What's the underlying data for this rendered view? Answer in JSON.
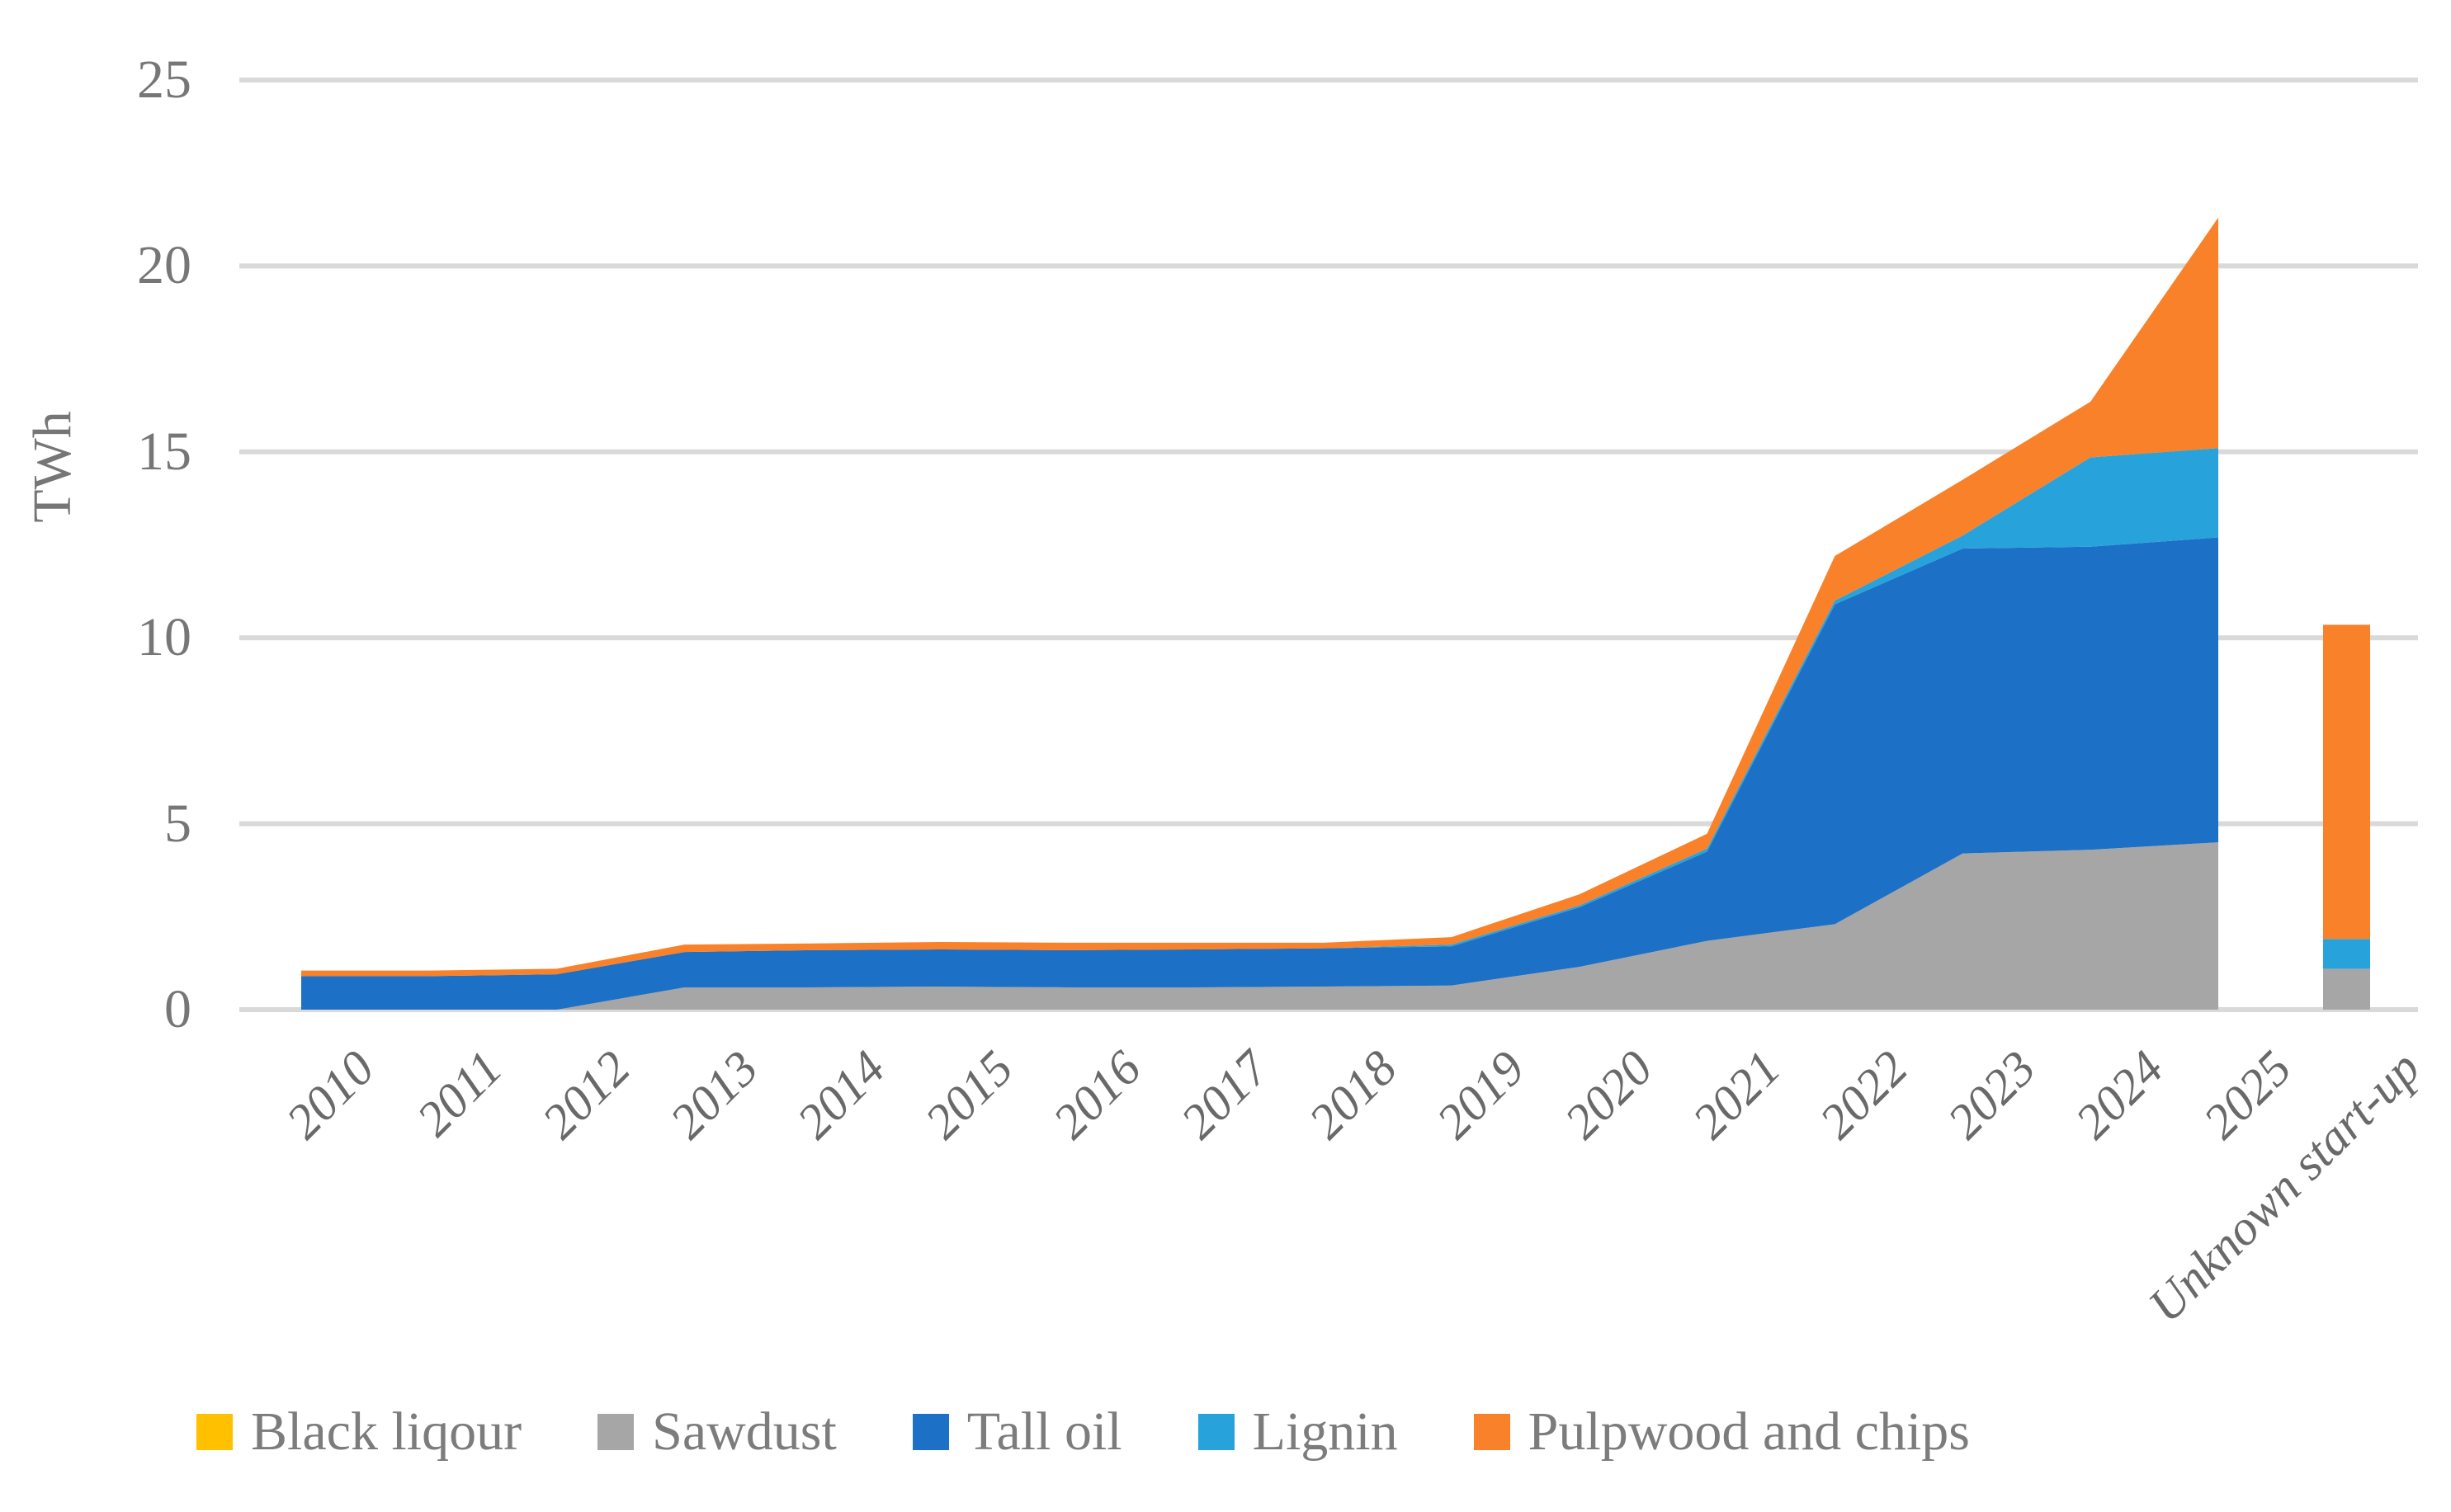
{
  "figure": {
    "y_axis_title": "TWh"
  },
  "chart_data": {
    "type": "area",
    "subtype": "stacked",
    "note_last_category": "rendered as separate stacked bar",
    "ylabel": "TWh",
    "ylim": [
      0,
      25
    ],
    "grid": true,
    "legend_position": "bottom",
    "gridline_color": "#D9D9D9",
    "axis_text_color": "#767676",
    "y_ticks": [
      "0",
      "5",
      "10",
      "15",
      "20",
      "25"
    ],
    "categories": [
      "2010",
      "2011",
      "2012",
      "2013",
      "2014",
      "2015",
      "2016",
      "2017",
      "2018",
      "2019",
      "2020",
      "2021",
      "2022",
      "2023",
      "2024",
      "2025",
      "Unknown start-up"
    ],
    "series": [
      {
        "name": "Black liqour",
        "color": "#FFC000",
        "values": [
          0,
          0,
          0,
          0,
          0,
          0,
          0,
          0,
          0,
          0,
          0,
          0,
          0,
          0,
          0,
          0,
          0
        ]
      },
      {
        "name": "Sawdust",
        "color": "#A6A6A6",
        "values": [
          0,
          0,
          0,
          0.6,
          0.6,
          0.62,
          0.6,
          0.6,
          0.62,
          0.65,
          1.15,
          1.85,
          2.3,
          4.2,
          4.3,
          4.5,
          1.1
        ]
      },
      {
        "name": "Tall oil",
        "color": "#1C70C5",
        "values": [
          0.9,
          0.9,
          0.95,
          0.95,
          1.0,
          1.0,
          1.0,
          1.02,
          1.03,
          1.05,
          1.6,
          2.4,
          8.6,
          8.2,
          8.15,
          8.2,
          0
        ]
      },
      {
        "name": "Lignin",
        "color": "#27A2DB",
        "values": [
          0,
          0,
          0,
          0,
          0,
          0,
          0,
          0,
          0,
          0.05,
          0.05,
          0.08,
          0.1,
          0.35,
          2.4,
          2.4,
          0.8
        ]
      },
      {
        "name": "Pulpwood and chips",
        "color": "#F8812A",
        "values": [
          0.15,
          0.15,
          0.15,
          0.2,
          0.18,
          0.2,
          0.2,
          0.18,
          0.15,
          0.2,
          0.3,
          0.4,
          1.2,
          1.5,
          1.5,
          6.2,
          8.45
        ]
      }
    ]
  }
}
